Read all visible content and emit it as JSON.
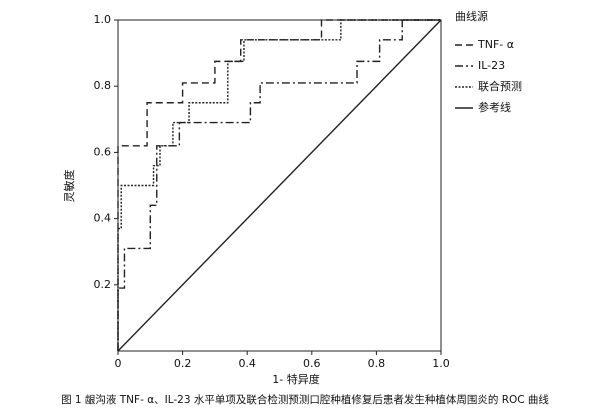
{
  "chart_data": {
    "type": "line",
    "xlabel": "1- 特异度",
    "ylabel": "灵敏度",
    "caption": "图 1  龈沟液 TNF- α、IL-23 水平单项及联合检测预测口腔种植修复后患者发生种植体周围炎的 ROC 曲线",
    "legend_title": "曲线源",
    "legend": "right",
    "xlim": [
      0,
      1
    ],
    "ylim": [
      0,
      1
    ],
    "xticks": [
      0,
      0.2,
      0.4,
      0.6,
      0.8,
      {
        "value": 1,
        "label": "1.0"
      }
    ],
    "yticks": [
      0.2,
      0.4,
      0.6,
      0.8,
      {
        "value": 1,
        "label": "1.0"
      }
    ],
    "series": [
      {
        "name": "TNF- α",
        "color": "#222222",
        "style": "dashed",
        "x": [
          0,
          0,
          0.09,
          0.09,
          0.2,
          0.2,
          0.3,
          0.3,
          0.38,
          0.38,
          0.63,
          0.63,
          1
        ],
        "values": [
          0,
          0.62,
          0.62,
          0.75,
          0.75,
          0.81,
          0.81,
          0.875,
          0.875,
          0.94,
          0.94,
          1,
          1
        ]
      },
      {
        "name": "IL-23",
        "color": "#222222",
        "style": "dashdot",
        "x": [
          0,
          0,
          0.02,
          0.02,
          0.1,
          0.1,
          0.12,
          0.12,
          0.19,
          0.19,
          0.41,
          0.41,
          0.44,
          0.44,
          0.74,
          0.74,
          0.81,
          0.81,
          0.88,
          0.88,
          1
        ],
        "values": [
          0,
          0.19,
          0.19,
          0.31,
          0.31,
          0.44,
          0.44,
          0.62,
          0.62,
          0.69,
          0.69,
          0.75,
          0.75,
          0.81,
          0.81,
          0.875,
          0.875,
          0.94,
          0.94,
          1,
          1
        ]
      },
      {
        "name": "联合预测",
        "color": "#222222",
        "style": "dotted",
        "x": [
          0,
          0,
          0.01,
          0.01,
          0.11,
          0.11,
          0.13,
          0.13,
          0.17,
          0.17,
          0.22,
          0.22,
          0.34,
          0.34,
          0.39,
          0.39,
          0.69,
          0.69,
          1
        ],
        "values": [
          0,
          0.37,
          0.37,
          0.5,
          0.5,
          0.56,
          0.56,
          0.62,
          0.62,
          0.69,
          0.69,
          0.75,
          0.75,
          0.875,
          0.875,
          0.94,
          0.94,
          1,
          1
        ]
      },
      {
        "name": "参考线",
        "color": "#222222",
        "style": "solid",
        "x": [
          0,
          1
        ],
        "values": [
          0,
          1
        ]
      }
    ]
  }
}
